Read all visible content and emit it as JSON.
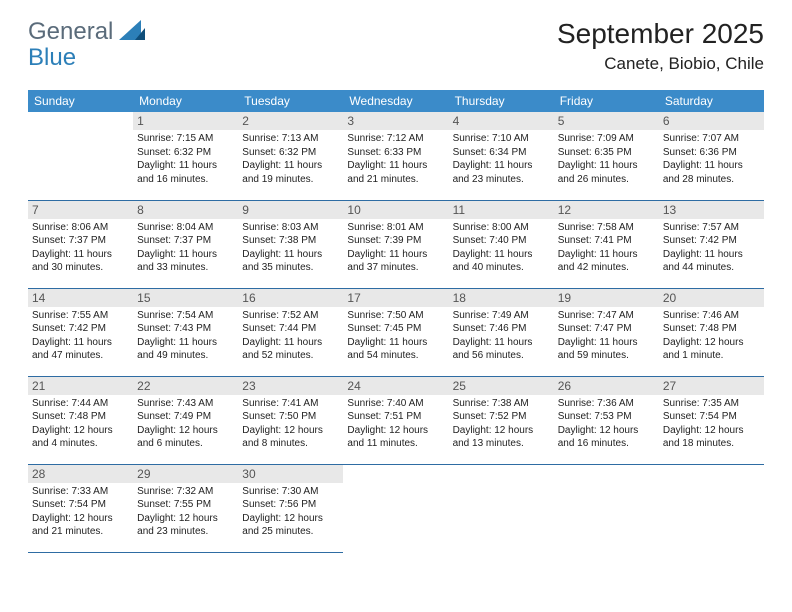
{
  "brand": {
    "part1": "General",
    "part2": "Blue"
  },
  "title": "September 2025",
  "location": "Canete, Biobio, Chile",
  "headers": [
    "Sunday",
    "Monday",
    "Tuesday",
    "Wednesday",
    "Thursday",
    "Friday",
    "Saturday"
  ],
  "colors": {
    "header_bg": "#3b8bc9",
    "header_text": "#ffffff",
    "daynum_bg": "#e8e8e8",
    "row_border": "#2e6ca3",
    "logo_gray": "#5a6b7a",
    "logo_blue": "#2c7fb8",
    "page_bg": "#ffffff",
    "body_text": "#222222"
  },
  "grid": [
    [
      null,
      {
        "n": "1",
        "sr": "7:15 AM",
        "ss": "6:32 PM",
        "dl": "11 hours and 16 minutes."
      },
      {
        "n": "2",
        "sr": "7:13 AM",
        "ss": "6:32 PM",
        "dl": "11 hours and 19 minutes."
      },
      {
        "n": "3",
        "sr": "7:12 AM",
        "ss": "6:33 PM",
        "dl": "11 hours and 21 minutes."
      },
      {
        "n": "4",
        "sr": "7:10 AM",
        "ss": "6:34 PM",
        "dl": "11 hours and 23 minutes."
      },
      {
        "n": "5",
        "sr": "7:09 AM",
        "ss": "6:35 PM",
        "dl": "11 hours and 26 minutes."
      },
      {
        "n": "6",
        "sr": "7:07 AM",
        "ss": "6:36 PM",
        "dl": "11 hours and 28 minutes."
      }
    ],
    [
      {
        "n": "7",
        "sr": "8:06 AM",
        "ss": "7:37 PM",
        "dl": "11 hours and 30 minutes."
      },
      {
        "n": "8",
        "sr": "8:04 AM",
        "ss": "7:37 PM",
        "dl": "11 hours and 33 minutes."
      },
      {
        "n": "9",
        "sr": "8:03 AM",
        "ss": "7:38 PM",
        "dl": "11 hours and 35 minutes."
      },
      {
        "n": "10",
        "sr": "8:01 AM",
        "ss": "7:39 PM",
        "dl": "11 hours and 37 minutes."
      },
      {
        "n": "11",
        "sr": "8:00 AM",
        "ss": "7:40 PM",
        "dl": "11 hours and 40 minutes."
      },
      {
        "n": "12",
        "sr": "7:58 AM",
        "ss": "7:41 PM",
        "dl": "11 hours and 42 minutes."
      },
      {
        "n": "13",
        "sr": "7:57 AM",
        "ss": "7:42 PM",
        "dl": "11 hours and 44 minutes."
      }
    ],
    [
      {
        "n": "14",
        "sr": "7:55 AM",
        "ss": "7:42 PM",
        "dl": "11 hours and 47 minutes."
      },
      {
        "n": "15",
        "sr": "7:54 AM",
        "ss": "7:43 PM",
        "dl": "11 hours and 49 minutes."
      },
      {
        "n": "16",
        "sr": "7:52 AM",
        "ss": "7:44 PM",
        "dl": "11 hours and 52 minutes."
      },
      {
        "n": "17",
        "sr": "7:50 AM",
        "ss": "7:45 PM",
        "dl": "11 hours and 54 minutes."
      },
      {
        "n": "18",
        "sr": "7:49 AM",
        "ss": "7:46 PM",
        "dl": "11 hours and 56 minutes."
      },
      {
        "n": "19",
        "sr": "7:47 AM",
        "ss": "7:47 PM",
        "dl": "11 hours and 59 minutes."
      },
      {
        "n": "20",
        "sr": "7:46 AM",
        "ss": "7:48 PM",
        "dl": "12 hours and 1 minute."
      }
    ],
    [
      {
        "n": "21",
        "sr": "7:44 AM",
        "ss": "7:48 PM",
        "dl": "12 hours and 4 minutes."
      },
      {
        "n": "22",
        "sr": "7:43 AM",
        "ss": "7:49 PM",
        "dl": "12 hours and 6 minutes."
      },
      {
        "n": "23",
        "sr": "7:41 AM",
        "ss": "7:50 PM",
        "dl": "12 hours and 8 minutes."
      },
      {
        "n": "24",
        "sr": "7:40 AM",
        "ss": "7:51 PM",
        "dl": "12 hours and 11 minutes."
      },
      {
        "n": "25",
        "sr": "7:38 AM",
        "ss": "7:52 PM",
        "dl": "12 hours and 13 minutes."
      },
      {
        "n": "26",
        "sr": "7:36 AM",
        "ss": "7:53 PM",
        "dl": "12 hours and 16 minutes."
      },
      {
        "n": "27",
        "sr": "7:35 AM",
        "ss": "7:54 PM",
        "dl": "12 hours and 18 minutes."
      }
    ],
    [
      {
        "n": "28",
        "sr": "7:33 AM",
        "ss": "7:54 PM",
        "dl": "12 hours and 21 minutes."
      },
      {
        "n": "29",
        "sr": "7:32 AM",
        "ss": "7:55 PM",
        "dl": "12 hours and 23 minutes."
      },
      {
        "n": "30",
        "sr": "7:30 AM",
        "ss": "7:56 PM",
        "dl": "12 hours and 25 minutes."
      },
      null,
      null,
      null,
      null
    ]
  ],
  "labels": {
    "sunrise": "Sunrise:",
    "sunset": "Sunset:",
    "daylight": "Daylight:"
  }
}
